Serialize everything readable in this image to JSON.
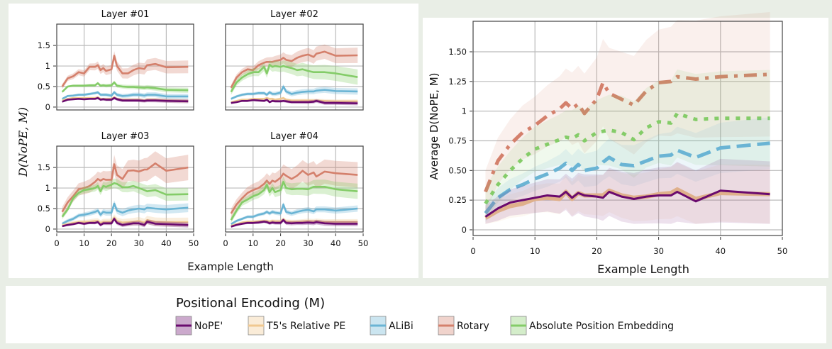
{
  "colors": {
    "NoPE": "#6a0a6e",
    "T5": "#f0c890",
    "ALiBi": "#6ab4d4",
    "Rotary": "#d4806c",
    "Absolute": "#84cc68"
  },
  "chart_data": [
    {
      "type": "line",
      "panel": "small-multiples",
      "ylabel": "D(NoPE, M)",
      "xlabel": "Example Length",
      "xlim": [
        0,
        50
      ],
      "ylim": [
        -0.07,
        2.02
      ],
      "xticks": [
        0,
        10,
        20,
        30,
        40,
        50
      ],
      "yticks": [
        0,
        0.5,
        1,
        1.5
      ],
      "ytick_labels": [
        "0",
        "0.5",
        "1",
        "1.5"
      ],
      "grid": true,
      "x": [
        2,
        4,
        6,
        8,
        10,
        12,
        14,
        15,
        16,
        17,
        18,
        20,
        21,
        22,
        24,
        26,
        28,
        30,
        32,
        33,
        36,
        40,
        48
      ],
      "layers": [
        {
          "title": "Layer #01",
          "series": [
            {
              "name": "Rotary",
              "values": [
                0.5,
                0.7,
                0.75,
                0.85,
                0.82,
                0.98,
                0.98,
                1.02,
                0.9,
                0.95,
                0.88,
                0.92,
                1.25,
                1.0,
                0.82,
                0.82,
                0.9,
                0.95,
                0.93,
                1.02,
                1.05,
                0.97,
                0.98
              ],
              "spread": 0.1
            },
            {
              "name": "Absolute",
              "values": [
                0.37,
                0.5,
                0.52,
                0.52,
                0.52,
                0.53,
                0.53,
                0.58,
                0.52,
                0.53,
                0.52,
                0.53,
                0.6,
                0.52,
                0.5,
                0.49,
                0.49,
                0.48,
                0.47,
                0.48,
                0.46,
                0.42,
                0.41
              ],
              "spread": 0.04
            },
            {
              "name": "ALiBi",
              "values": [
                0.2,
                0.27,
                0.28,
                0.3,
                0.3,
                0.32,
                0.34,
                0.36,
                0.3,
                0.3,
                0.3,
                0.28,
                0.36,
                0.3,
                0.27,
                0.28,
                0.3,
                0.3,
                0.28,
                0.3,
                0.3,
                0.26,
                0.26
              ],
              "spread": 0.04
            },
            {
              "name": "T5",
              "values": [
                0.16,
                0.2,
                0.22,
                0.22,
                0.22,
                0.22,
                0.22,
                0.24,
                0.2,
                0.2,
                0.2,
                0.2,
                0.24,
                0.2,
                0.18,
                0.18,
                0.18,
                0.18,
                0.16,
                0.18,
                0.18,
                0.16,
                0.15
              ],
              "spread": 0.03
            },
            {
              "name": "NoPE",
              "values": [
                0.13,
                0.18,
                0.19,
                0.2,
                0.19,
                0.2,
                0.2,
                0.22,
                0.18,
                0.19,
                0.18,
                0.18,
                0.22,
                0.19,
                0.16,
                0.16,
                0.16,
                0.16,
                0.15,
                0.16,
                0.16,
                0.15,
                0.14
              ],
              "spread": 0.03
            }
          ]
        },
        {
          "title": "Layer #02",
          "series": [
            {
              "name": "Rotary",
              "values": [
                0.47,
                0.72,
                0.85,
                0.92,
                0.9,
                1.02,
                1.08,
                1.1,
                1.1,
                1.1,
                1.12,
                1.15,
                1.2,
                1.15,
                1.12,
                1.2,
                1.25,
                1.28,
                1.22,
                1.3,
                1.35,
                1.25,
                1.26
              ],
              "spread": 0.12
            },
            {
              "name": "Absolute",
              "values": [
                0.37,
                0.6,
                0.72,
                0.8,
                0.85,
                0.85,
                0.98,
                0.82,
                1.03,
                0.98,
                1.0,
                0.98,
                1.0,
                0.98,
                0.95,
                0.9,
                0.92,
                0.88,
                0.85,
                0.85,
                0.85,
                0.82,
                0.73
              ],
              "spread": 0.12
            },
            {
              "name": "ALiBi",
              "values": [
                0.2,
                0.26,
                0.3,
                0.32,
                0.32,
                0.34,
                0.34,
                0.3,
                0.36,
                0.32,
                0.32,
                0.35,
                0.5,
                0.38,
                0.32,
                0.35,
                0.37,
                0.38,
                0.38,
                0.4,
                0.42,
                0.39,
                0.38
              ],
              "spread": 0.05
            },
            {
              "name": "T5",
              "values": [
                0.12,
                0.15,
                0.18,
                0.18,
                0.2,
                0.2,
                0.2,
                0.22,
                0.2,
                0.2,
                0.18,
                0.2,
                0.22,
                0.18,
                0.16,
                0.16,
                0.16,
                0.16,
                0.16,
                0.16,
                0.15,
                0.14,
                0.14
              ],
              "spread": 0.03
            },
            {
              "name": "NoPE",
              "values": [
                0.1,
                0.12,
                0.15,
                0.15,
                0.17,
                0.16,
                0.15,
                0.18,
                0.12,
                0.15,
                0.14,
                0.14,
                0.15,
                0.14,
                0.12,
                0.12,
                0.12,
                0.12,
                0.13,
                0.15,
                0.1,
                0.1,
                0.09
              ],
              "spread": 0.03
            }
          ]
        },
        {
          "title": "Layer #03",
          "series": [
            {
              "name": "Rotary",
              "values": [
                0.42,
                0.65,
                0.8,
                0.97,
                1.0,
                1.05,
                1.15,
                1.22,
                1.18,
                1.22,
                1.2,
                1.2,
                1.58,
                1.32,
                1.22,
                1.42,
                1.43,
                1.4,
                1.45,
                1.45,
                1.6,
                1.42,
                1.5
              ],
              "spread": 0.2
            },
            {
              "name": "Absolute",
              "values": [
                0.3,
                0.48,
                0.75,
                0.88,
                0.95,
                0.97,
                1.0,
                1.05,
                0.92,
                1.05,
                1.03,
                1.08,
                1.12,
                1.1,
                1.02,
                1.02,
                1.05,
                1.0,
                0.95,
                0.92,
                0.95,
                0.84,
                0.85
              ],
              "spread": 0.1
            },
            {
              "name": "ALiBi",
              "values": [
                0.13,
                0.2,
                0.25,
                0.33,
                0.35,
                0.38,
                0.42,
                0.45,
                0.35,
                0.42,
                0.4,
                0.4,
                0.62,
                0.45,
                0.4,
                0.45,
                0.48,
                0.5,
                0.48,
                0.52,
                0.5,
                0.48,
                0.52
              ],
              "spread": 0.07
            },
            {
              "name": "T5",
              "values": [
                0.09,
                0.12,
                0.15,
                0.17,
                0.17,
                0.18,
                0.2,
                0.2,
                0.15,
                0.18,
                0.18,
                0.18,
                0.28,
                0.2,
                0.16,
                0.17,
                0.18,
                0.2,
                0.16,
                0.22,
                0.18,
                0.17,
                0.17
              ],
              "spread": 0.07
            },
            {
              "name": "NoPE",
              "values": [
                0.07,
                0.1,
                0.12,
                0.15,
                0.13,
                0.15,
                0.15,
                0.17,
                0.1,
                0.14,
                0.14,
                0.14,
                0.25,
                0.15,
                0.1,
                0.12,
                0.14,
                0.14,
                0.1,
                0.18,
                0.13,
                0.12,
                0.1
              ],
              "spread": 0.04
            }
          ]
        },
        {
          "title": "Layer #04",
          "series": [
            {
              "name": "Rotary",
              "values": [
                0.38,
                0.6,
                0.75,
                0.88,
                0.95,
                1.0,
                1.1,
                1.18,
                1.1,
                1.18,
                1.15,
                1.25,
                1.35,
                1.3,
                1.22,
                1.3,
                1.42,
                1.32,
                1.38,
                1.28,
                1.4,
                1.36,
                1.32
              ],
              "spread": 0.2
            },
            {
              "name": "Absolute",
              "values": [
                0.22,
                0.45,
                0.65,
                0.72,
                0.8,
                0.85,
                0.95,
                1.08,
                0.9,
                1.0,
                0.9,
                0.95,
                1.15,
                1.0,
                0.97,
                0.98,
                0.98,
                0.97,
                1.03,
                1.03,
                1.03,
                0.97,
                0.92
              ],
              "spread": 0.12
            },
            {
              "name": "ALiBi",
              "values": [
                0.12,
                0.2,
                0.25,
                0.3,
                0.3,
                0.35,
                0.38,
                0.42,
                0.38,
                0.42,
                0.4,
                0.38,
                0.6,
                0.42,
                0.38,
                0.42,
                0.45,
                0.47,
                0.43,
                0.48,
                0.48,
                0.45,
                0.5
              ],
              "spread": 0.05
            },
            {
              "name": "T5",
              "values": [
                0.08,
                0.12,
                0.16,
                0.18,
                0.18,
                0.19,
                0.2,
                0.2,
                0.18,
                0.2,
                0.19,
                0.19,
                0.24,
                0.19,
                0.18,
                0.18,
                0.19,
                0.2,
                0.19,
                0.2,
                0.18,
                0.18,
                0.18
              ],
              "spread": 0.04
            },
            {
              "name": "NoPE",
              "values": [
                0.06,
                0.1,
                0.13,
                0.15,
                0.15,
                0.16,
                0.18,
                0.17,
                0.14,
                0.16,
                0.15,
                0.15,
                0.22,
                0.15,
                0.14,
                0.15,
                0.15,
                0.16,
                0.15,
                0.17,
                0.14,
                0.13,
                0.13
              ],
              "spread": 0.04
            }
          ]
        }
      ]
    },
    {
      "type": "line",
      "panel": "average",
      "ylabel": "Average D(NoPE, M)",
      "xlabel": "Example Length",
      "xlim": [
        0,
        50
      ],
      "ylim": [
        -0.048,
        1.757
      ],
      "xticks": [
        0,
        10,
        20,
        30,
        40,
        50
      ],
      "yticks": [
        0,
        0.25,
        0.5,
        0.75,
        1,
        1.25,
        1.5
      ],
      "ytick_labels": [
        "0",
        "0.25",
        "0.50",
        "0.75",
        "1",
        "1.25",
        "1.50"
      ],
      "grid": true,
      "x": [
        2,
        4,
        6,
        8,
        10,
        12,
        14,
        15,
        16,
        17,
        18,
        20,
        21,
        22,
        24,
        26,
        28,
        30,
        32,
        33,
        36,
        40,
        48
      ],
      "series": [
        {
          "name": "Rotary",
          "style": "dashdot",
          "values": [
            0.32,
            0.58,
            0.72,
            0.82,
            0.88,
            0.96,
            1.02,
            1.07,
            1.02,
            1.06,
            0.98,
            1.1,
            1.24,
            1.15,
            1.1,
            1.05,
            1.17,
            1.24,
            1.25,
            1.29,
            1.27,
            1.29,
            1.31
          ],
          "spread": 0.36
        },
        {
          "name": "Absolute",
          "style": "dotted",
          "values": [
            0.22,
            0.38,
            0.5,
            0.6,
            0.68,
            0.72,
            0.76,
            0.78,
            0.77,
            0.8,
            0.75,
            0.82,
            0.83,
            0.84,
            0.82,
            0.76,
            0.86,
            0.91,
            0.9,
            0.98,
            0.93,
            0.94,
            0.94
          ],
          "spread": 0.28
        },
        {
          "name": "ALiBi",
          "style": "dashed",
          "values": [
            0.14,
            0.27,
            0.34,
            0.38,
            0.43,
            0.47,
            0.52,
            0.56,
            0.5,
            0.55,
            0.5,
            0.52,
            0.57,
            0.61,
            0.55,
            0.54,
            0.58,
            0.62,
            0.63,
            0.67,
            0.61,
            0.69,
            0.73
          ],
          "spread": 0.15
        },
        {
          "name": "T5",
          "style": "solid",
          "values": [
            0.1,
            0.16,
            0.2,
            0.22,
            0.26,
            0.27,
            0.26,
            0.32,
            0.26,
            0.31,
            0.29,
            0.29,
            0.29,
            0.33,
            0.29,
            0.27,
            0.28,
            0.3,
            0.31,
            0.34,
            0.26,
            0.31,
            0.3
          ],
          "spread": 0.17
        },
        {
          "name": "NoPE",
          "style": "solid",
          "values": [
            0.11,
            0.18,
            0.23,
            0.25,
            0.27,
            0.29,
            0.28,
            0.32,
            0.27,
            0.31,
            0.29,
            0.28,
            0.27,
            0.32,
            0.28,
            0.26,
            0.28,
            0.29,
            0.29,
            0.32,
            0.24,
            0.33,
            0.3
          ],
          "spread": 0.19
        }
      ]
    }
  ],
  "legend": {
    "title": "Positional Encoding (M)",
    "items": [
      {
        "key": "NoPE",
        "label": "NoPE'"
      },
      {
        "key": "T5",
        "label": "T5's Relative PE"
      },
      {
        "key": "ALiBi",
        "label": "ALiBi"
      },
      {
        "key": "Rotary",
        "label": "Rotary"
      },
      {
        "key": "Absolute",
        "label": "Absolute Position Embedding"
      }
    ]
  }
}
